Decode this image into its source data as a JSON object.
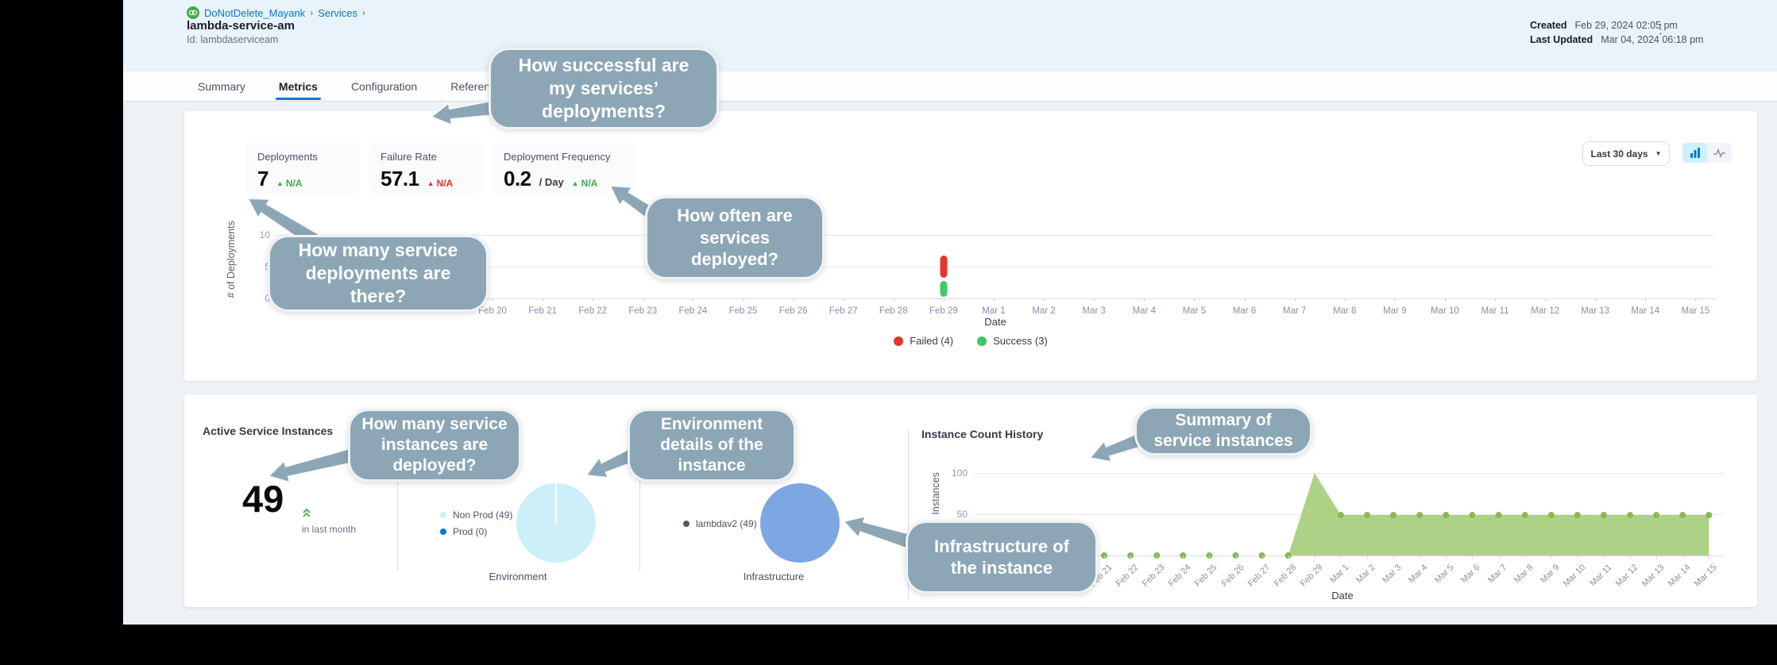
{
  "header": {
    "breadcrumb": {
      "project": "DoNotDelete_Mayank",
      "section": "Services",
      "separator": "›"
    },
    "service_name": "lambda-service-am",
    "service_id": "Id: lambdaserviceam",
    "created_label": "Created",
    "created_value": "Feb 29, 2024 02:05 pm",
    "updated_label": "Last Updated",
    "updated_value": "Mar 04, 2024 06:18 pm",
    "kebab_glyph": "⋮"
  },
  "tabs": [
    {
      "label": "Summary",
      "active": false
    },
    {
      "label": "Metrics",
      "active": true
    },
    {
      "label": "Configuration",
      "active": false
    },
    {
      "label": "Referenced",
      "active": false
    }
  ],
  "metrics": {
    "tiles": [
      {
        "label": "Deployments",
        "value": "7",
        "suffix": "",
        "trend": "N/A",
        "trend_color": "green"
      },
      {
        "label": "Failure Rate",
        "value": "57.1",
        "suffix": "",
        "trend": "N/A",
        "trend_color": "red"
      },
      {
        "label": "Deployment Frequency",
        "value": "0.2",
        "suffix": "/ Day",
        "trend": "N/A",
        "trend_color": "green"
      }
    ],
    "range_selector": "Last 30 days"
  },
  "legend": [
    {
      "label": "Failed (4)",
      "color": "#e3352c"
    },
    {
      "label": "Success (3)",
      "color": "#3fc364"
    }
  ],
  "chart_data": [
    {
      "id": "deployment_history",
      "type": "bar",
      "stacked": true,
      "title": "",
      "xlabel": "Date",
      "ylabel": "# of Deployments",
      "ylim": [
        0,
        10
      ],
      "yticks": [
        0,
        5,
        10
      ],
      "grid": true,
      "legend_position": "bottom",
      "categories": [
        "Feb 20",
        "Feb 21",
        "Feb 22",
        "Feb 23",
        "Feb 24",
        "Feb 25",
        "Feb 26",
        "Feb 27",
        "Feb 28",
        "Feb 29",
        "Mar 1",
        "Mar 2",
        "Mar 3",
        "Mar 4",
        "Mar 5",
        "Mar 6",
        "Mar 7",
        "Mar 8",
        "Mar 9",
        "Mar 10",
        "Mar 11",
        "Mar 12",
        "Mar 13",
        "Mar 14",
        "Mar 15"
      ],
      "series": [
        {
          "name": "Success",
          "total": 3,
          "color": "#44c768",
          "values": [
            0,
            0,
            0,
            0,
            0,
            0,
            0,
            0,
            0,
            3,
            0,
            0,
            0,
            0,
            0,
            0,
            0,
            0,
            0,
            0,
            0,
            0,
            0,
            0,
            0
          ]
        },
        {
          "name": "Failed",
          "total": 4,
          "color": "#e3372e",
          "values": [
            0,
            0,
            0,
            0,
            0,
            0,
            0,
            0,
            0,
            4,
            0,
            0,
            0,
            0,
            0,
            0,
            0,
            0,
            0,
            0,
            0,
            0,
            0,
            0,
            0
          ]
        }
      ]
    },
    {
      "id": "instance_count_history",
      "type": "area",
      "title": "Instance Count History",
      "xlabel": "Date",
      "ylabel": "Instances",
      "ylim": [
        0,
        105
      ],
      "yticks": [
        50,
        100
      ],
      "grid": true,
      "color": "#a9d080",
      "point_color": "#86ba52",
      "x": [
        "Feb 21",
        "Feb 22",
        "Feb 23",
        "Feb 24",
        "Feb 25",
        "Feb 26",
        "Feb 27",
        "Feb 28",
        "Feb 29",
        "Mar 1",
        "Mar 2",
        "Mar 3",
        "Mar 4",
        "Mar 5",
        "Mar 6",
        "Mar 7",
        "Mar 8",
        "Mar 9",
        "Mar 10",
        "Mar 11",
        "Mar 12",
        "Mar 13",
        "Mar 14",
        "Mar 15"
      ],
      "values": [
        0,
        0,
        0,
        0,
        0,
        0,
        0,
        0,
        100,
        49,
        49,
        49,
        49,
        49,
        49,
        49,
        49,
        49,
        49,
        49,
        49,
        49,
        49,
        49
      ]
    }
  ],
  "instances": {
    "title": "Active Service Instances",
    "count": "49",
    "count_caption": "in last month",
    "environment": {
      "label": "Environment",
      "pie_color": "#cdeffa",
      "legend": [
        {
          "name": "Non Prod (49)",
          "color": "#cdeffa"
        },
        {
          "name": "Prod (0)",
          "color": "#0278d5"
        }
      ]
    },
    "infrastructure": {
      "label": "Infrastructure",
      "pie_color": "#7da7e2",
      "legend": [
        {
          "name": "lambdav2 (49)",
          "color": "#565a66"
        }
      ]
    },
    "history_title": "Instance Count History"
  },
  "callouts": [
    {
      "text": "How successful are my services’ deployments?"
    },
    {
      "text": "How many service deployments are there?"
    },
    {
      "text": "How often are services deployed?"
    },
    {
      "text": "How many service instances are deployed?"
    },
    {
      "text": "Environment details of the instance"
    },
    {
      "text": "Summary of service instances"
    },
    {
      "text": "Infrastructure of the instance"
    }
  ],
  "colors": {
    "accent": "#0278d5",
    "success": "#42ab45",
    "danger": "#e43326",
    "callout": "#8ca6b6"
  }
}
